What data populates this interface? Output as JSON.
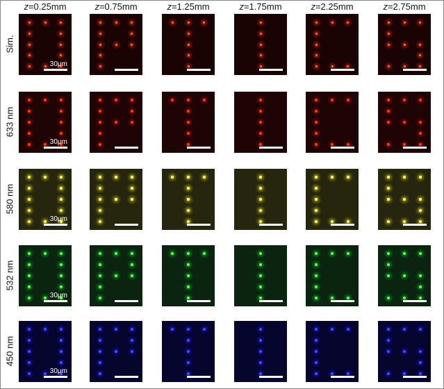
{
  "columns": [
    {
      "var": "z",
      "rest": "=0.25mm"
    },
    {
      "var": "z",
      "rest": "=0.75mm"
    },
    {
      "var": "z",
      "rest": "=1.25mm"
    },
    {
      "var": "z",
      "rest": "=1.75mm"
    },
    {
      "var": "z",
      "rest": "=2.25mm"
    },
    {
      "var": "z",
      "rest": "=2.75mm"
    }
  ],
  "rows": [
    {
      "label": "Sim."
    },
    {
      "label": "633 nm"
    },
    {
      "label": "580 nm"
    },
    {
      "label": "532 nm"
    },
    {
      "label": "450 nm"
    }
  ],
  "scale_bar_label": "30μm"
}
